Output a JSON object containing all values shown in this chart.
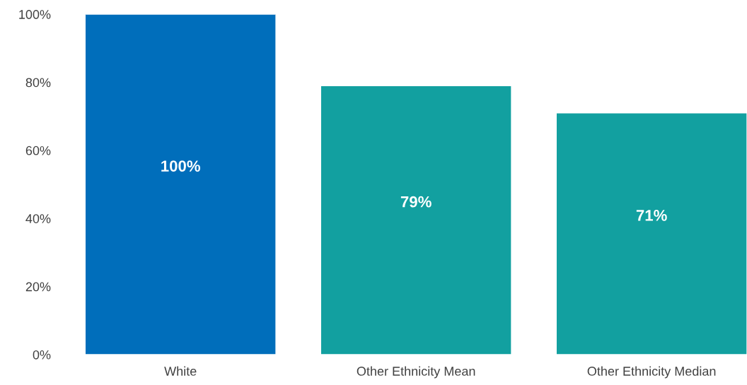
{
  "chart_data": {
    "type": "bar",
    "categories": [
      "White",
      "Other Ethnicity Mean",
      "Other Ethnicity Median"
    ],
    "values": [
      100,
      79,
      71
    ],
    "colors": [
      "#006ebb",
      "#12a0a0",
      "#12a0a0"
    ],
    "value_labels": [
      "100%",
      "79%",
      "71%"
    ],
    "ylim": [
      0,
      100
    ],
    "yticks": [
      {
        "value": 0,
        "label": "0%"
      },
      {
        "value": 20,
        "label": "20%"
      },
      {
        "value": 40,
        "label": "40%"
      },
      {
        "value": 60,
        "label": "60%"
      },
      {
        "value": 80,
        "label": "80%"
      },
      {
        "value": 100,
        "label": "100%"
      }
    ],
    "grid": false,
    "legend": false
  }
}
